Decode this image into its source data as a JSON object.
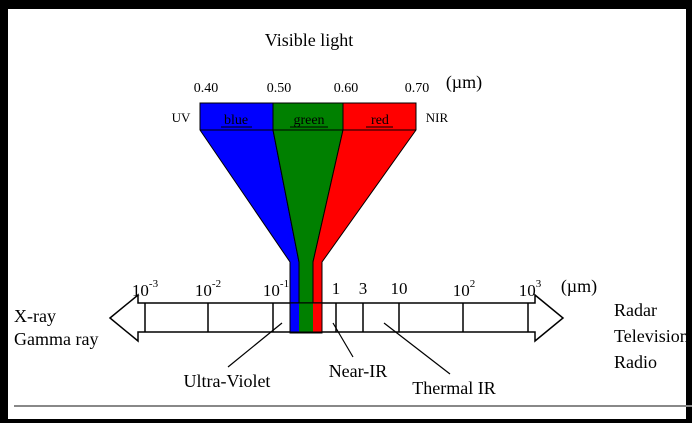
{
  "title": "Visible light",
  "visible_ticks": [
    "0.40",
    "0.50",
    "0.60",
    "0.70"
  ],
  "visible_unit": "(µm)",
  "uv_label": "UV",
  "nir_label": "NIR",
  "bands": [
    {
      "label": "blue",
      "color": "#0000ff"
    },
    {
      "label": "green",
      "color": "#008000"
    },
    {
      "label": "red",
      "color": "#ff0000"
    }
  ],
  "scale_ticks": [
    {
      "base": "10",
      "exp": "-3"
    },
    {
      "base": "10",
      "exp": "-2"
    },
    {
      "base": "10",
      "exp": "-1"
    },
    {
      "base": "1",
      "exp": ""
    },
    {
      "base": "3",
      "exp": ""
    },
    {
      "base": "10",
      "exp": ""
    },
    {
      "base": "10",
      "exp": "2"
    },
    {
      "base": "10",
      "exp": "3"
    }
  ],
  "scale_unit": "(µm)",
  "left_labels": [
    "X-ray",
    "Gamma ray"
  ],
  "right_labels": [
    "Radar",
    "Television",
    "Radio"
  ],
  "callouts": {
    "ultraviolet": "Ultra-Violet",
    "near_ir": "Near-IR",
    "thermal_ir": "Thermal IR"
  },
  "colors": {
    "frame": "#000000",
    "background": "#ffffff"
  }
}
